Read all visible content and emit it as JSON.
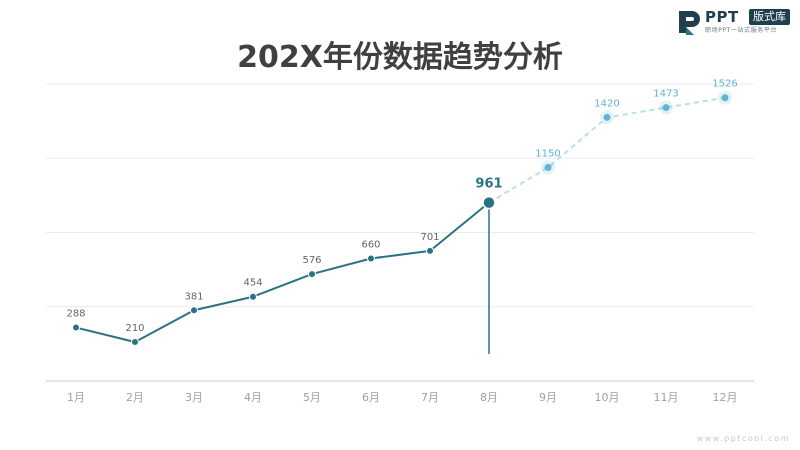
{
  "title": "202X年份数据趋势分析",
  "logo": {
    "word": "PPT",
    "badge": "版式库",
    "tagline": "职场PPT一站式服务平台"
  },
  "footer": "www.pptcool.com",
  "colors": {
    "actual": "#2a7286",
    "forecast": "#5eb6d5",
    "forecast_line": "#b9ddee",
    "grid": "#ececec",
    "axis": "#cfcfcf",
    "label": "#666666",
    "tick": "#a0a0a0"
  },
  "chart_data": {
    "type": "line",
    "categories": [
      "1月",
      "2月",
      "3月",
      "4月",
      "5月",
      "6月",
      "7月",
      "8月",
      "9月",
      "10月",
      "11月",
      "12月"
    ],
    "values": [
      288,
      210,
      381,
      454,
      576,
      660,
      701,
      961,
      1150,
      1420,
      1473,
      1526
    ],
    "highlight": "8月",
    "ylim": [
      0,
      1600
    ],
    "grid": true,
    "title": "",
    "xlabel": "",
    "ylabel": ""
  }
}
